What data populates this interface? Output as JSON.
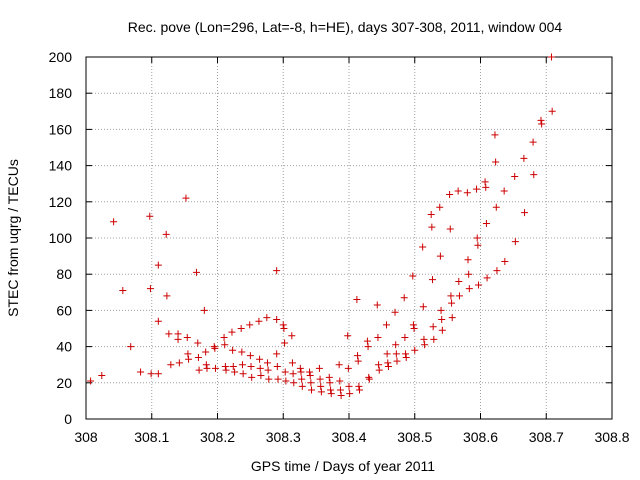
{
  "chart_data": {
    "type": "scatter",
    "title": "Rec. pove (Lon=296, Lat=-8, h=HE), days 307-308, 2011, window 004",
    "xlabel": "GPS time / Days of year 2011",
    "ylabel": "STEC from uqrg / TECUs",
    "xlim": [
      308,
      308.8
    ],
    "ylim": [
      0,
      200
    ],
    "x_ticks": [
      308,
      308.1,
      308.2,
      308.3,
      308.4,
      308.5,
      308.6,
      308.7,
      308.8
    ],
    "x_tick_labels": [
      "308",
      "308.1",
      "308.2",
      "308.3",
      "308.4",
      "308.5",
      "308.6",
      "308.7",
      "308.8"
    ],
    "y_ticks": [
      0,
      20,
      40,
      60,
      80,
      100,
      120,
      140,
      160,
      180,
      200
    ],
    "y_tick_labels": [
      "0",
      "20",
      "40",
      "60",
      "80",
      "100",
      "120",
      "140",
      "160",
      "180",
      "200"
    ],
    "grid": true,
    "marker": "+",
    "color": "#cc0000",
    "points": [
      [
        308.007,
        21
      ],
      [
        308.024,
        24
      ],
      [
        308.042,
        109
      ],
      [
        308.056,
        71
      ],
      [
        308.068,
        40
      ],
      [
        308.083,
        26
      ],
      [
        308.097,
        112
      ],
      [
        308.098,
        72
      ],
      [
        308.099,
        25
      ],
      [
        308.11,
        85
      ],
      [
        308.11,
        54
      ],
      [
        308.11,
        25
      ],
      [
        308.122,
        102
      ],
      [
        308.123,
        68
      ],
      [
        308.126,
        47
      ],
      [
        308.129,
        30
      ],
      [
        308.14,
        47
      ],
      [
        308.14,
        44
      ],
      [
        308.142,
        31
      ],
      [
        308.152,
        122
      ],
      [
        308.154,
        45
      ],
      [
        308.155,
        36
      ],
      [
        308.156,
        33
      ],
      [
        308.168,
        81
      ],
      [
        308.17,
        42
      ],
      [
        308.171,
        34
      ],
      [
        308.172,
        27
      ],
      [
        308.18,
        60
      ],
      [
        308.182,
        37
      ],
      [
        308.183,
        30
      ],
      [
        308.184,
        28
      ],
      [
        308.195,
        40
      ],
      [
        308.196,
        39
      ],
      [
        308.197,
        28
      ],
      [
        308.21,
        45
      ],
      [
        308.211,
        41
      ],
      [
        308.212,
        29
      ],
      [
        308.213,
        27
      ],
      [
        308.222,
        48
      ],
      [
        308.223,
        38
      ],
      [
        308.224,
        29
      ],
      [
        308.226,
        26
      ],
      [
        308.236,
        50
      ],
      [
        308.237,
        37
      ],
      [
        308.238,
        30
      ],
      [
        308.239,
        25
      ],
      [
        308.249,
        52
      ],
      [
        308.25,
        35
      ],
      [
        308.251,
        29
      ],
      [
        308.252,
        23
      ],
      [
        308.263,
        54
      ],
      [
        308.264,
        33
      ],
      [
        308.265,
        28
      ],
      [
        308.266,
        24
      ],
      [
        308.275,
        56
      ],
      [
        308.276,
        31
      ],
      [
        308.277,
        27
      ],
      [
        308.278,
        22
      ],
      [
        308.29,
        82
      ],
      [
        308.29,
        55
      ],
      [
        308.29,
        36
      ],
      [
        308.291,
        29
      ],
      [
        308.292,
        22
      ],
      [
        308.3,
        52
      ],
      [
        308.301,
        50
      ],
      [
        308.302,
        42
      ],
      [
        308.303,
        26
      ],
      [
        308.304,
        21
      ],
      [
        308.313,
        46
      ],
      [
        308.314,
        31
      ],
      [
        308.315,
        25
      ],
      [
        308.316,
        20
      ],
      [
        308.326,
        28
      ],
      [
        308.327,
        26
      ],
      [
        308.328,
        22
      ],
      [
        308.329,
        18
      ],
      [
        308.34,
        26
      ],
      [
        308.341,
        24
      ],
      [
        308.342,
        20
      ],
      [
        308.343,
        16
      ],
      [
        308.355,
        28
      ],
      [
        308.356,
        22
      ],
      [
        308.357,
        18
      ],
      [
        308.358,
        15
      ],
      [
        308.37,
        23
      ],
      [
        308.371,
        20
      ],
      [
        308.372,
        16
      ],
      [
        308.373,
        14
      ],
      [
        308.385,
        30
      ],
      [
        308.386,
        21
      ],
      [
        308.387,
        16
      ],
      [
        308.388,
        13
      ],
      [
        308.398,
        46
      ],
      [
        308.399,
        28
      ],
      [
        308.4,
        18
      ],
      [
        308.401,
        14
      ],
      [
        308.412,
        66
      ],
      [
        308.413,
        35
      ],
      [
        308.414,
        32
      ],
      [
        308.415,
        18
      ],
      [
        308.416,
        16
      ],
      [
        308.428,
        43
      ],
      [
        308.429,
        40
      ],
      [
        308.43,
        23
      ],
      [
        308.431,
        22
      ],
      [
        308.443,
        63
      ],
      [
        308.444,
        45
      ],
      [
        308.445,
        30
      ],
      [
        308.446,
        27
      ],
      [
        308.457,
        52
      ],
      [
        308.458,
        36
      ],
      [
        308.459,
        31
      ],
      [
        308.46,
        29
      ],
      [
        308.47,
        59
      ],
      [
        308.471,
        41
      ],
      [
        308.472,
        36
      ],
      [
        308.473,
        32
      ],
      [
        308.484,
        67
      ],
      [
        308.485,
        45
      ],
      [
        308.486,
        36
      ],
      [
        308.487,
        34
      ],
      [
        308.497,
        79
      ],
      [
        308.498,
        52
      ],
      [
        308.499,
        50
      ],
      [
        308.5,
        38
      ],
      [
        308.512,
        95
      ],
      [
        308.513,
        62
      ],
      [
        308.514,
        44
      ],
      [
        308.515,
        41
      ],
      [
        308.525,
        113
      ],
      [
        308.526,
        106
      ],
      [
        308.527,
        77
      ],
      [
        308.528,
        51
      ],
      [
        308.529,
        44
      ],
      [
        308.538,
        117
      ],
      [
        308.539,
        90
      ],
      [
        308.54,
        60
      ],
      [
        308.541,
        55
      ],
      [
        308.542,
        49
      ],
      [
        308.553,
        124
      ],
      [
        308.554,
        105
      ],
      [
        308.555,
        68
      ],
      [
        308.556,
        64
      ],
      [
        308.557,
        56
      ],
      [
        308.566,
        126
      ],
      [
        308.567,
        76
      ],
      [
        308.568,
        68
      ],
      [
        308.58,
        125
      ],
      [
        308.581,
        88
      ],
      [
        308.582,
        80
      ],
      [
        308.583,
        72
      ],
      [
        308.594,
        127
      ],
      [
        308.595,
        100
      ],
      [
        308.596,
        96
      ],
      [
        308.597,
        74
      ],
      [
        308.607,
        131
      ],
      [
        308.608,
        128
      ],
      [
        308.609,
        108
      ],
      [
        308.61,
        78
      ],
      [
        308.622,
        157
      ],
      [
        308.623,
        142
      ],
      [
        308.624,
        117
      ],
      [
        308.625,
        82
      ],
      [
        308.636,
        126
      ],
      [
        308.637,
        87
      ],
      [
        308.652,
        134
      ],
      [
        308.653,
        98
      ],
      [
        308.666,
        144
      ],
      [
        308.667,
        114
      ],
      [
        308.68,
        153
      ],
      [
        308.681,
        135
      ],
      [
        308.692,
        165
      ],
      [
        308.693,
        163
      ],
      [
        308.708,
        200
      ],
      [
        308.709,
        170
      ]
    ]
  }
}
